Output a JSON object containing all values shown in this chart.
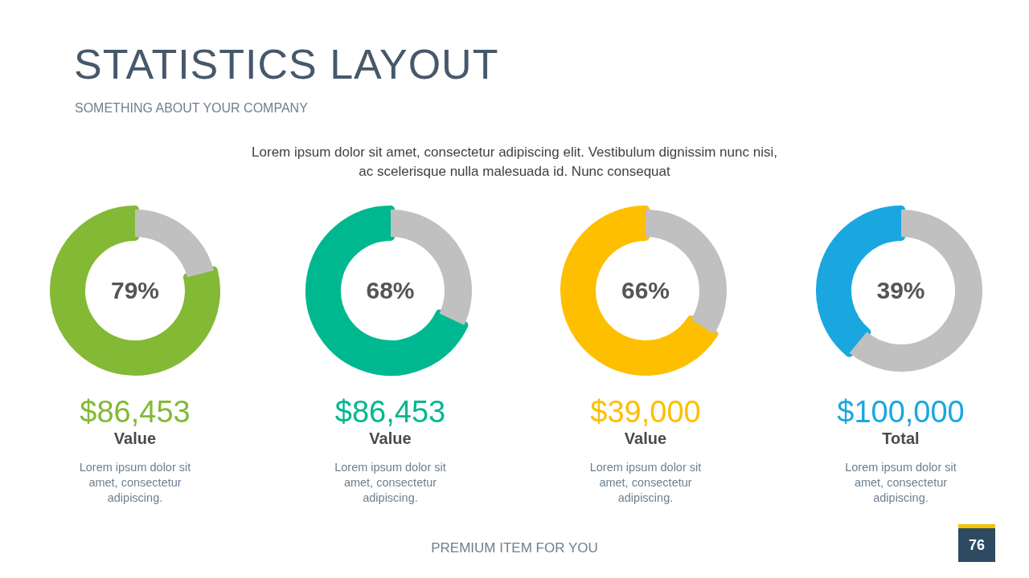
{
  "chart_data": [
    {
      "type": "other",
      "title": "STATISTICS LAYOUT",
      "subtitle": "SOMETHING ABOUT YOUR COMPANY",
      "annotations": [
        "Lorem ipsum dolor sit amet, consectetur adipiscing elit. Vestibulum dignissim nunc nisi, ac scelerisque nulla malesuada id. Nunc consequat",
        "PREMIUM ITEM FOR YOU",
        "76"
      ]
    },
    {
      "type": "donut",
      "title": "79%",
      "categories": [
        null,
        null
      ],
      "values": [
        79,
        21
      ],
      "colors": [
        "#83b935",
        "#c0c0c0"
      ],
      "annotations": [
        "$86,453",
        "Value",
        "Lorem ipsum dolor sit amet, consectetur adipiscing."
      ]
    },
    {
      "type": "donut",
      "title": "68%",
      "categories": [
        null,
        null
      ],
      "values": [
        68,
        32
      ],
      "colors": [
        "#00b890",
        "#c0c0c0"
      ],
      "annotations": [
        "$86,453",
        "Value",
        "Lorem ipsum dolor sit amet, consectetur adipiscing."
      ]
    },
    {
      "type": "donut",
      "title": "66%",
      "categories": [
        null,
        null
      ],
      "values": [
        66,
        34
      ],
      "colors": [
        "#fdbf00",
        "#c0c0c0"
      ],
      "annotations": [
        "$39,000",
        "Value",
        "Lorem ipsum dolor sit amet, consectetur adipiscing."
      ]
    },
    {
      "type": "donut",
      "title": "39%",
      "categories": [
        null,
        null
      ],
      "values": [
        39,
        61
      ],
      "colors": [
        "#1aa7e0",
        "#c0c0c0"
      ],
      "annotations": [
        "$100,000",
        "Total",
        "Lorem ipsum dolor sit amet, consectetur adipiscing."
      ]
    }
  ]
}
